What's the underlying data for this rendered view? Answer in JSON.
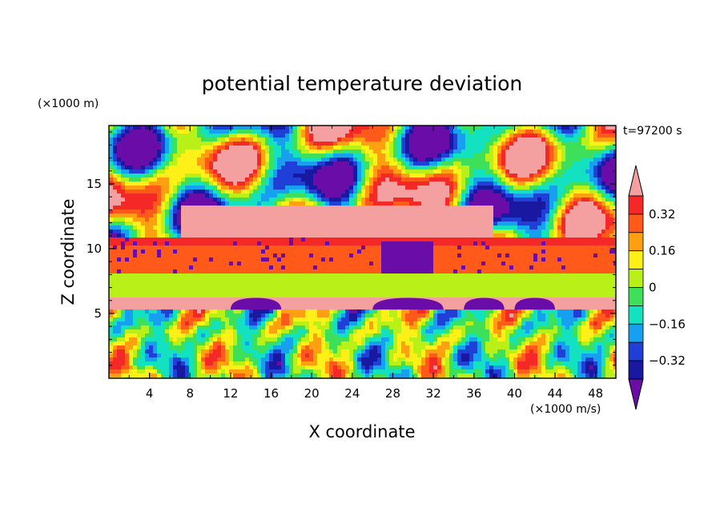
{
  "chart_data": {
    "type": "heatmap",
    "title": "potential temperature deviation",
    "xlabel": "X coordinate",
    "ylabel": "Z coordinate",
    "x_unit": "(×1000 m/s)",
    "y_unit": "(×1000 m)",
    "time_label": "t=97200 s",
    "xlim": [
      0,
      50
    ],
    "ylim": [
      0,
      19.5
    ],
    "x_ticks": [
      "4",
      "8",
      "12",
      "16",
      "20",
      "24",
      "28",
      "32",
      "36",
      "40",
      "44",
      "48"
    ],
    "y_ticks": [
      "5",
      "10",
      "15"
    ],
    "colorbar": {
      "levels": [
        -0.4,
        -0.32,
        -0.24,
        -0.16,
        -0.08,
        0,
        0.08,
        0.16,
        0.24,
        0.32,
        0.4
      ],
      "tick_labels": [
        "0.32",
        "0.16",
        "0",
        "−0.16",
        "−0.32"
      ],
      "colors": [
        "#6a0ca8",
        "#1818a0",
        "#1f3fd6",
        "#18a0f0",
        "#12e2c0",
        "#3ee05a",
        "#b8f018",
        "#fff018",
        "#ffa010",
        "#ff5a1a",
        "#f52828",
        "#f4a0a0"
      ],
      "extend": "both"
    },
    "bands": [
      {
        "z_range": [
          0,
          5.3
        ],
        "description": "gravity-wave cells",
        "levels": [
          -0.4,
          0.4
        ]
      },
      {
        "z_range": [
          5.3,
          6.2
        ],
        "level": 0.4
      },
      {
        "z_range": [
          6.2,
          8
        ],
        "level": 0.04
      },
      {
        "z_range": [
          8,
          10.8
        ],
        "level": 0.3
      },
      {
        "z_range": [
          10.8,
          19.5
        ],
        "description": "mixed layer",
        "levels": [
          -0.4,
          0.4
        ]
      }
    ]
  }
}
